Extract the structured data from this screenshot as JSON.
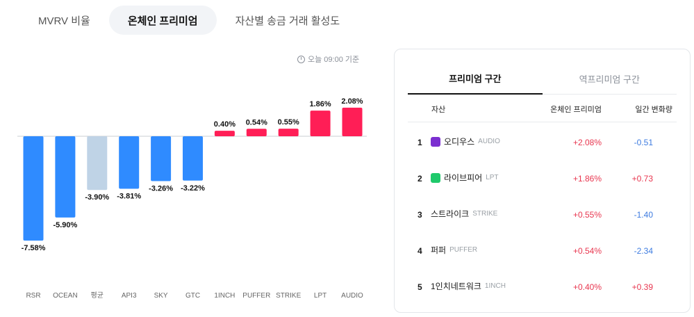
{
  "tabs": [
    {
      "label": "MVRV 비율"
    },
    {
      "label": "온체인 프리미엄",
      "active": true
    },
    {
      "label": "자산별 송금 거래 활성도"
    }
  ],
  "timestamp": "오늘 09:00 기준",
  "chart_data": {
    "type": "bar",
    "categories": [
      "RSR",
      "OCEAN",
      "평균",
      "API3",
      "SKY",
      "GTC",
      "1INCH",
      "PUFFER",
      "STRIKE",
      "LPT",
      "AUDIO"
    ],
    "values": [
      -7.58,
      -5.9,
      -3.9,
      -3.81,
      -3.26,
      -3.22,
      0.4,
      0.54,
      0.55,
      1.86,
      2.08
    ],
    "value_labels": [
      "-7.58%",
      "-5.90%",
      "-3.90%",
      "-3.81%",
      "-3.26%",
      "-3.22%",
      "0.40%",
      "0.54%",
      "0.55%",
      "1.86%",
      "2.08%"
    ],
    "colors": {
      "positive": "#ff1e56",
      "negative": "#2f8bff",
      "average": "#bfd3e6"
    },
    "average_category": "평균",
    "title": "",
    "xlabel": "",
    "ylabel": "",
    "grid": false
  },
  "panel": {
    "tabs": [
      {
        "label": "프리미엄 구간",
        "active": true
      },
      {
        "label": "역프리미엄 구간"
      }
    ],
    "headers": {
      "asset": "자산",
      "premium": "온체인 프리미엄",
      "change": "일간 변화량"
    },
    "rows": [
      {
        "rank": "1",
        "name": "오디우스",
        "symbol": "AUDIO",
        "premium": "+2.08%",
        "change": "-0.51",
        "change_sign": "neg",
        "logo_color": "#7b2fd0"
      },
      {
        "rank": "2",
        "name": "라이브피어",
        "symbol": "LPT",
        "premium": "+1.86%",
        "change": "+0.73",
        "change_sign": "pos",
        "logo_color": "#1fc96b"
      },
      {
        "rank": "3",
        "name": "스트라이크",
        "symbol": "STRIKE",
        "premium": "+0.55%",
        "change": "-1.40",
        "change_sign": "neg",
        "logo_color": ""
      },
      {
        "rank": "4",
        "name": "퍼퍼",
        "symbol": "PUFFER",
        "premium": "+0.54%",
        "change": "-2.34",
        "change_sign": "neg",
        "logo_color": ""
      },
      {
        "rank": "5",
        "name": "1인치네트워크",
        "symbol": "1INCH",
        "premium": "+0.40%",
        "change": "+0.39",
        "change_sign": "pos",
        "logo_color": ""
      }
    ]
  }
}
